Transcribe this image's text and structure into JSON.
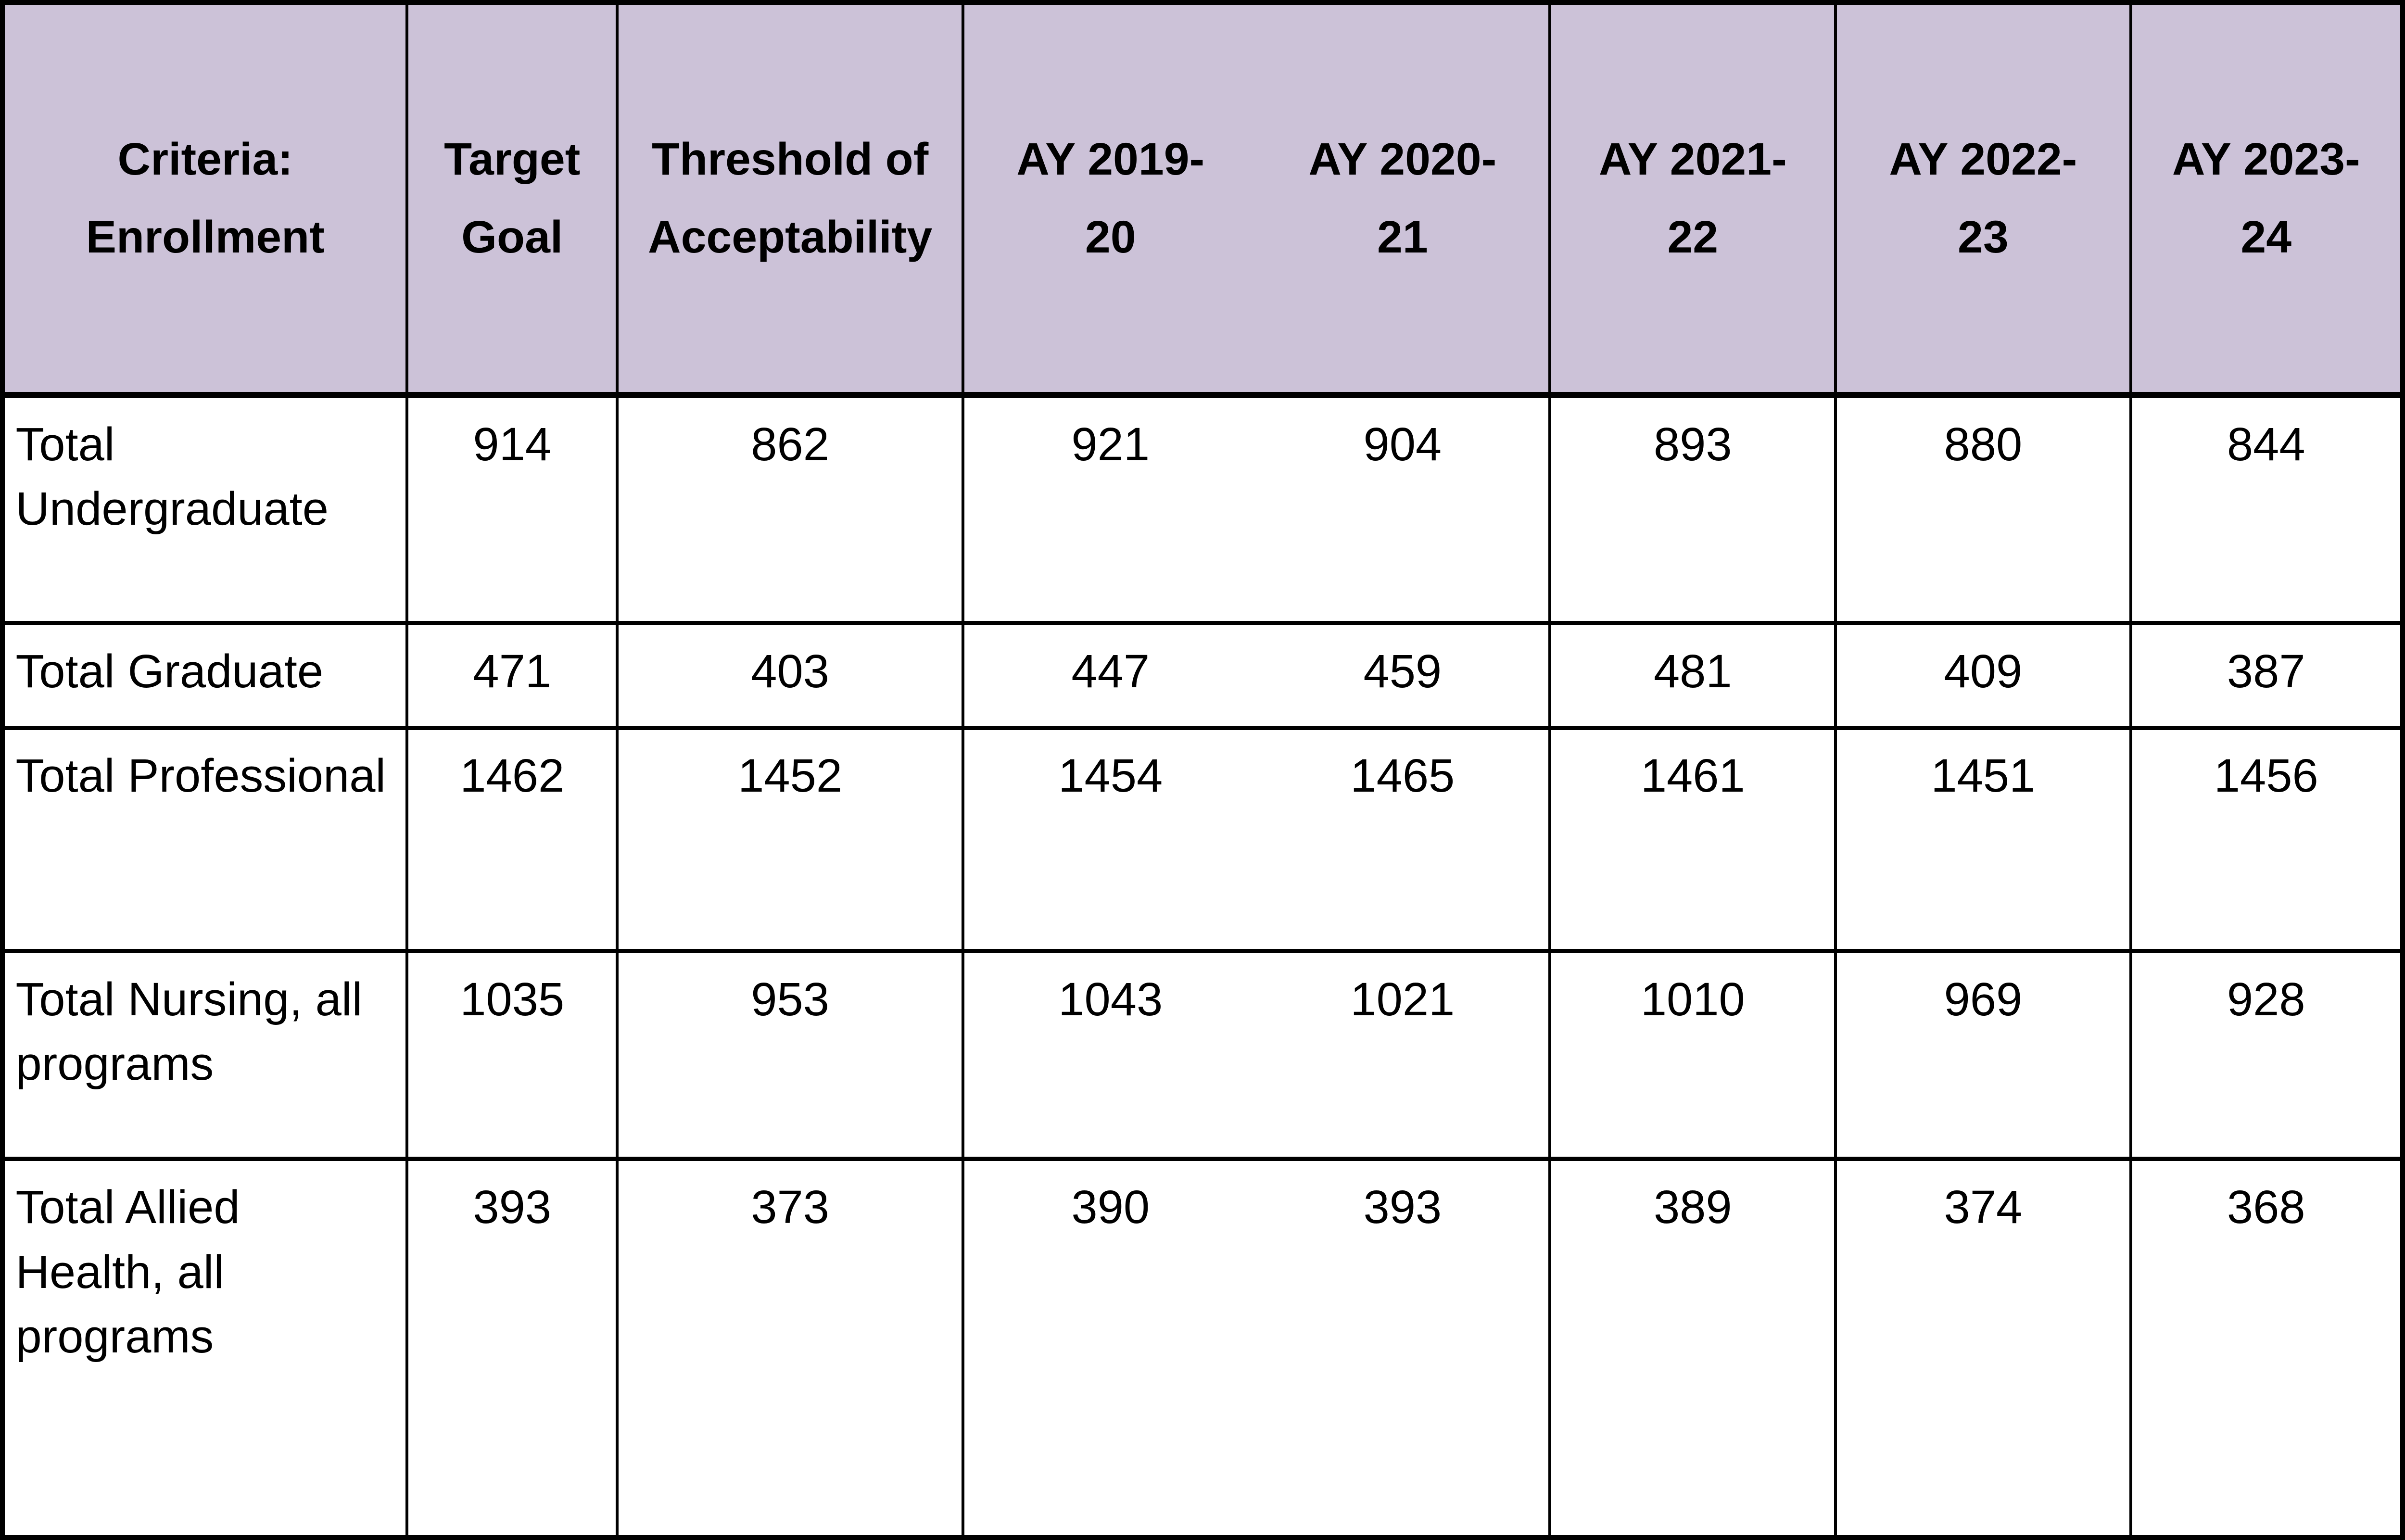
{
  "colors": {
    "header_bg": "#CCC2D8",
    "border": "#000000",
    "text": "#000000",
    "body_bg": "#FFFFFF"
  },
  "table": {
    "header": {
      "criteria": "Criteria: Enrollment",
      "target_goal": "Target Goal",
      "threshold": "Threshold of Acceptability",
      "ay": [
        "AY 2019-20",
        "AY 2020-21",
        "AY 2021-22",
        "AY 2022-23",
        "AY 2023-24"
      ]
    },
    "rows": [
      {
        "label": "Total Undergraduate",
        "values": [
          914,
          862,
          921,
          904,
          893,
          880,
          844
        ]
      },
      {
        "label": "Total Graduate",
        "values": [
          471,
          403,
          447,
          459,
          481,
          409,
          387
        ]
      },
      {
        "label": "Total Professional",
        "values": [
          1462,
          1452,
          1454,
          1465,
          1461,
          1451,
          1456
        ]
      },
      {
        "label": "Total Nursing, all programs",
        "values": [
          1035,
          953,
          1043,
          1021,
          1010,
          969,
          928
        ]
      },
      {
        "label": "Total Allied Health, all programs",
        "values": [
          393,
          373,
          390,
          393,
          389,
          374,
          368
        ]
      }
    ]
  }
}
